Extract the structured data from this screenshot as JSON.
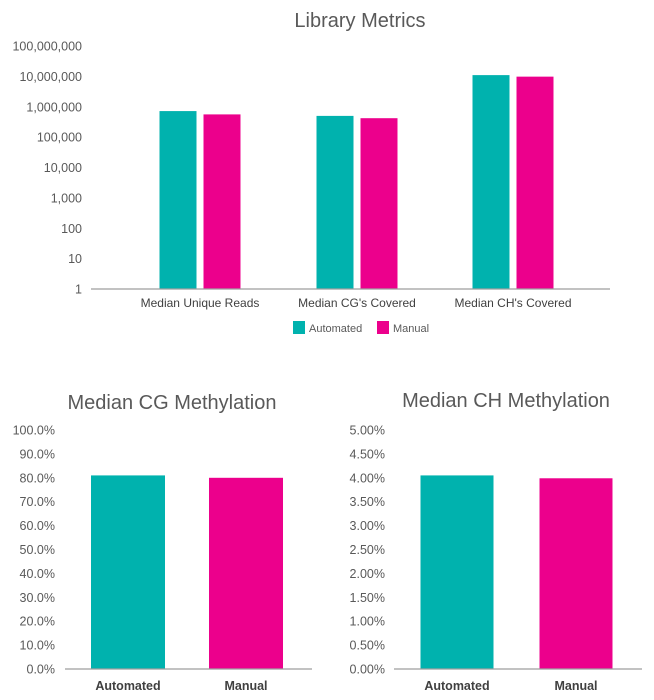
{
  "colors": {
    "automated": "#00b2ae",
    "manual": "#ec008c",
    "axis": "#9e9e9e"
  },
  "chart_data": [
    {
      "type": "bar",
      "title": "Library Metrics",
      "yscale": "log",
      "ylim": [
        1,
        100000000
      ],
      "yticks": [
        "100,000,000",
        "10,000,000",
        "1,000,000",
        "100,000",
        "10,000",
        "1,000",
        "100",
        "10",
        "1"
      ],
      "categories": [
        "Median Unique Reads",
        "Median CG's Covered",
        "Median CH's Covered"
      ],
      "series": [
        {
          "name": "Automated",
          "values": [
            720000,
            500000,
            11000000
          ]
        },
        {
          "name": "Manual",
          "values": [
            560000,
            420000,
            9800000
          ]
        }
      ],
      "legend": "bottom",
      "grid": false
    },
    {
      "type": "bar",
      "title": "Median CG Methylation",
      "ylim": [
        0,
        100
      ],
      "yticks": [
        "100.0%",
        "90.0%",
        "80.0%",
        "70.0%",
        "60.0%",
        "50.0%",
        "40.0%",
        "30.0%",
        "20.0%",
        "10.0%",
        "0.0%"
      ],
      "categories": [
        "Automated",
        "Manual"
      ],
      "values": [
        81.0,
        80.0
      ],
      "unit": "%",
      "grid": false
    },
    {
      "type": "bar",
      "title": "Median CH Methylation",
      "ylim": [
        0,
        5
      ],
      "yticks": [
        "5.00%",
        "4.50%",
        "4.00%",
        "3.50%",
        "3.00%",
        "2.50%",
        "2.00%",
        "1.50%",
        "1.00%",
        "0.50%",
        "0.00%"
      ],
      "categories": [
        "Automated",
        "Manual"
      ],
      "values": [
        4.05,
        3.99
      ],
      "unit": "%",
      "grid": false
    }
  ]
}
